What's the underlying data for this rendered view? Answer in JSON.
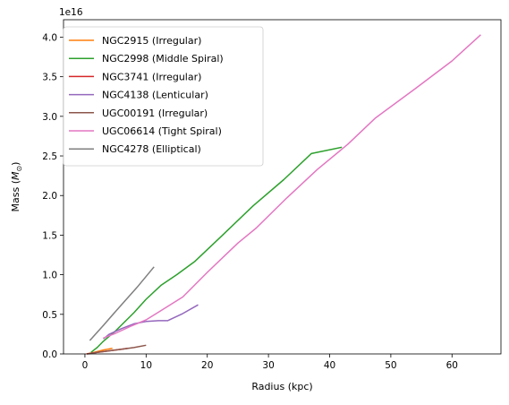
{
  "chart_data": {
    "type": "line",
    "xlabel": "Radius (kpc)",
    "ylabel_main": "Mass (",
    "ylabel_sym": "M",
    "ylabel_sub": "⊙",
    "ylabel_end": ")",
    "y_offset_label": "1e16",
    "y_scale_label": "(×1e16)",
    "xlim": [
      -3.5,
      68
    ],
    "ylim": [
      0,
      4.22
    ],
    "xticks": [
      0,
      10,
      20,
      30,
      40,
      50,
      60
    ],
    "yticks": [
      0.0,
      0.5,
      1.0,
      1.5,
      2.0,
      2.5,
      3.0,
      3.5,
      4.0
    ],
    "ytick_labels": [
      "0.0",
      "0.5",
      "1.0",
      "1.5",
      "2.0",
      "2.5",
      "3.0",
      "3.5",
      "4.0"
    ],
    "legend_placement": "upper-left",
    "grid": false,
    "series": [
      {
        "name": "NGC2915 (Irregular)",
        "color": "#ff7f0e",
        "points": [
          [
            0.3,
            0.0
          ],
          [
            1.5,
            0.02
          ],
          [
            3.0,
            0.05
          ],
          [
            4.5,
            0.07
          ]
        ]
      },
      {
        "name": "NGC2998 (Middle Spiral)",
        "color": "#2ca02c",
        "points": [
          [
            1.0,
            0.02
          ],
          [
            2.0,
            0.08
          ],
          [
            3.0,
            0.16
          ],
          [
            5.0,
            0.29
          ],
          [
            8.0,
            0.52
          ],
          [
            10.0,
            0.69
          ],
          [
            12.5,
            0.87
          ],
          [
            15.0,
            1.0
          ],
          [
            18.0,
            1.17
          ],
          [
            22.5,
            1.5
          ],
          [
            27.5,
            1.87
          ],
          [
            32.5,
            2.2
          ],
          [
            37.0,
            2.53
          ],
          [
            42.0,
            2.61
          ]
        ]
      },
      {
        "name": "NGC3741 (Irregular)",
        "color": "#d62728",
        "points": [
          [
            0.3,
            0.0
          ],
          [
            2.0,
            0.02
          ],
          [
            4.0,
            0.04
          ],
          [
            6.0,
            0.06
          ],
          [
            7.0,
            0.07
          ]
        ]
      },
      {
        "name": "NGC4138 (Lenticular)",
        "color": "#9467bd",
        "points": [
          [
            3.0,
            0.19
          ],
          [
            4.0,
            0.25
          ],
          [
            6.0,
            0.32
          ],
          [
            8.0,
            0.38
          ],
          [
            10.0,
            0.41
          ],
          [
            12.0,
            0.42
          ],
          [
            13.5,
            0.42
          ],
          [
            16.0,
            0.51
          ],
          [
            18.5,
            0.62
          ]
        ]
      },
      {
        "name": "UGC00191 (Irregular)",
        "color": "#8c564b",
        "points": [
          [
            0.5,
            0.0
          ],
          [
            2.0,
            0.02
          ],
          [
            4.0,
            0.04
          ],
          [
            6.0,
            0.06
          ],
          [
            8.0,
            0.08
          ],
          [
            10.0,
            0.11
          ]
        ]
      },
      {
        "name": "UGC06614 (Tight Spiral)",
        "color": "#e377c2",
        "points": [
          [
            3.0,
            0.2
          ],
          [
            5.0,
            0.26
          ],
          [
            7.5,
            0.35
          ],
          [
            10.0,
            0.43
          ],
          [
            12.5,
            0.55
          ],
          [
            16.0,
            0.72
          ],
          [
            20.0,
            1.03
          ],
          [
            25.0,
            1.4
          ],
          [
            28.0,
            1.59
          ],
          [
            33.0,
            1.97
          ],
          [
            38.0,
            2.33
          ],
          [
            43.0,
            2.65
          ],
          [
            47.5,
            2.98
          ],
          [
            54.0,
            3.35
          ],
          [
            60.0,
            3.7
          ],
          [
            64.7,
            4.03
          ]
        ]
      },
      {
        "name": "NGC4278 (Elliptical)",
        "color": "#7f7f7f",
        "points": [
          [
            0.8,
            0.17
          ],
          [
            3.0,
            0.36
          ],
          [
            5.5,
            0.58
          ],
          [
            8.5,
            0.84
          ],
          [
            11.3,
            1.1
          ]
        ]
      }
    ]
  }
}
